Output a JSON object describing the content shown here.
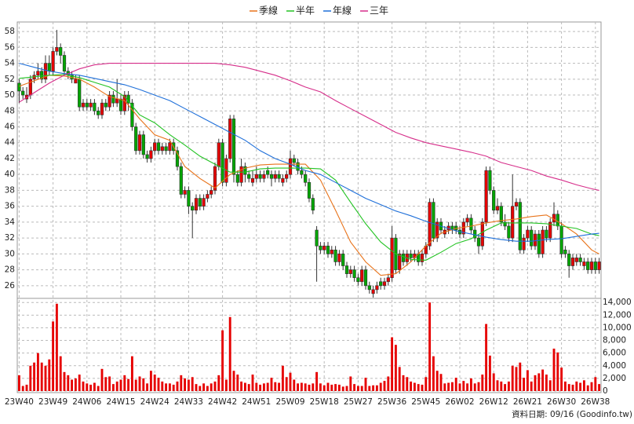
{
  "chart_data": {
    "type": "candlestick",
    "categories": [
      "23W40",
      null,
      null,
      null,
      null,
      null,
      null,
      null,
      null,
      "23W49",
      null,
      null,
      null,
      null,
      null,
      null,
      null,
      null,
      "24W06",
      null,
      null,
      null,
      null,
      null,
      null,
      null,
      null,
      "24W15",
      null,
      null,
      null,
      null,
      null,
      null,
      null,
      null,
      "24W24",
      null,
      null,
      null,
      null,
      null,
      null,
      null,
      null,
      "24W33",
      null,
      null,
      null,
      null,
      null,
      null,
      null,
      null,
      "24W42",
      null,
      null,
      null,
      null,
      null,
      null,
      null,
      null,
      "24W51",
      null,
      null,
      null,
      null,
      null,
      null,
      null,
      null,
      "25W09",
      null,
      null,
      null,
      null,
      null,
      null,
      null,
      null,
      "25W18",
      null,
      null,
      null,
      null,
      null,
      null,
      null,
      null,
      "25W27",
      null,
      null,
      null,
      null,
      null,
      null,
      null,
      null,
      "25W36",
      null,
      null,
      null,
      null,
      null,
      null,
      null,
      null,
      "25W45",
      null,
      null,
      null,
      null,
      null,
      null,
      null,
      null,
      "26W02",
      null,
      null,
      null,
      null,
      null,
      null,
      null,
      null,
      "26W12",
      null,
      null,
      null,
      null,
      null,
      null,
      null,
      null,
      "26W21",
      null,
      null,
      null,
      null,
      null,
      null,
      null,
      null,
      "26W30",
      null,
      null,
      null,
      null,
      null,
      null,
      null,
      null,
      "26W38",
      null
    ],
    "open": [
      51.5,
      50.5,
      49.5,
      50,
      52,
      52.5,
      53,
      52,
      54,
      53,
      55.5,
      56,
      55,
      53,
      52.5,
      51.5,
      52,
      48.5,
      49,
      48.5,
      49,
      48,
      47.5,
      49,
      48.5,
      50,
      49,
      49.5,
      48,
      50,
      49,
      46,
      43,
      45,
      42.5,
      42,
      43,
      44,
      43,
      43.5,
      43,
      44,
      43,
      41,
      37.5,
      38,
      36,
      35.5,
      37,
      36,
      37,
      37.5,
      38,
      41,
      44,
      39,
      42,
      47,
      40,
      39,
      41,
      40,
      39,
      39.5,
      40,
      39.5,
      40.5,
      40,
      39.5,
      40,
      39,
      39.5,
      40,
      42,
      41.5,
      40.5,
      40,
      39,
      37,
      33,
      31,
      30.5,
      31,
      30,
      30.5,
      29,
      30,
      28.5,
      27.5,
      28,
      27,
      26.5,
      28,
      26,
      25,
      25.5,
      26.5,
      26,
      26.5,
      27,
      32,
      28,
      30,
      29,
      30,
      29.5,
      30,
      29,
      30,
      31,
      36.5,
      32,
      34,
      32.5,
      33,
      33.5,
      33.5,
      33,
      32.5,
      34,
      34.5,
      33,
      32,
      31,
      34,
      40.5,
      38,
      35.5,
      36,
      34,
      33.5,
      32,
      36,
      36.5,
      30.5,
      32,
      33,
      31,
      32.5,
      30,
      33,
      32,
      34,
      35,
      33.5,
      30.5,
      30,
      28.5,
      29,
      29.5,
      28.5,
      29,
      28,
      29,
      28
    ],
    "high": [
      52,
      51,
      51,
      52.5,
      53,
      54,
      53.5,
      55,
      55,
      56,
      58.2,
      56.5,
      55.5,
      53.5,
      53,
      52.5,
      52.5,
      49.5,
      49.5,
      49.5,
      49.5,
      48.5,
      49.5,
      49.5,
      50.5,
      50.5,
      52,
      50,
      50.5,
      50.5,
      49.5,
      46.5,
      45.5,
      45.5,
      43,
      43.5,
      44.5,
      44.5,
      44,
      44,
      44.5,
      44.5,
      43.5,
      41.5,
      38.5,
      38.5,
      36.5,
      37.5,
      37.5,
      37.5,
      38,
      38.5,
      41.5,
      44.5,
      44.5,
      42.5,
      47.5,
      47.5,
      40.5,
      42,
      41.5,
      40.5,
      40.5,
      41,
      40.5,
      40.5,
      41,
      40.5,
      40.5,
      40.5,
      40,
      40.5,
      43,
      42.5,
      42,
      41,
      40.5,
      39.5,
      37.5,
      33.5,
      31.5,
      31.5,
      31.5,
      31,
      31,
      30.5,
      30.5,
      29,
      28.5,
      28.5,
      27.5,
      28.5,
      28.5,
      26.5,
      26,
      26.5,
      27,
      27,
      27.5,
      33.5,
      32.5,
      30.5,
      30.5,
      30.5,
      30.5,
      30.5,
      30.5,
      30.5,
      31.5,
      37,
      37,
      34.5,
      34.5,
      33.5,
      34,
      34,
      34,
      33.5,
      34.5,
      35,
      35,
      33.5,
      32.5,
      34.5,
      41,
      41,
      38.5,
      37,
      36.5,
      35,
      34,
      40,
      37,
      37,
      32.5,
      33.5,
      33.5,
      33,
      33,
      33.5,
      33.5,
      34.5,
      36.5,
      35.5,
      34,
      31,
      30.5,
      30,
      30,
      30,
      29.5,
      29.5,
      29.5,
      29.5,
      29.5
    ],
    "low": [
      49,
      49.5,
      49,
      49.5,
      51.5,
      52,
      51.5,
      51.5,
      52.5,
      52.5,
      55,
      54,
      52.5,
      52,
      51.5,
      51.5,
      48,
      48,
      48,
      48,
      47.5,
      47,
      47,
      48,
      48,
      48.5,
      48.5,
      47.5,
      47.5,
      48,
      45.5,
      42.5,
      42.5,
      42,
      41.5,
      41.5,
      42.5,
      42.5,
      42.5,
      42.5,
      42.5,
      42.5,
      40.5,
      37,
      37,
      35,
      32,
      35,
      35.5,
      35.5,
      36.5,
      37,
      37.5,
      40.5,
      38.5,
      38.5,
      41.5,
      39,
      38.5,
      38.5,
      39,
      39,
      38.5,
      39,
      39,
      39,
      39.5,
      38.5,
      39,
      39,
      38.5,
      39,
      39.5,
      41,
      40,
      39.5,
      38.5,
      36.5,
      35,
      26.5,
      30,
      30,
      29.5,
      29.5,
      28.5,
      28.5,
      28,
      27,
      27,
      26.5,
      26,
      26,
      25.5,
      25,
      24.5,
      25,
      25.5,
      25.5,
      26,
      26.5,
      27.5,
      27.5,
      28.5,
      28.5,
      29,
      29,
      28.5,
      28.5,
      29.5,
      30.5,
      31.5,
      31.5,
      32.5,
      32,
      32.5,
      32.5,
      32.5,
      32,
      32,
      33.5,
      32.5,
      31.5,
      30,
      30.5,
      33.5,
      37.5,
      35,
      35,
      33.5,
      33,
      31.5,
      31.5,
      35.5,
      30,
      30,
      31.5,
      30.5,
      30.5,
      29.5,
      29.5,
      31.5,
      31.5,
      33.5,
      33,
      29.5,
      29.5,
      27,
      28,
      28.5,
      28.5,
      28,
      27.5,
      27.5,
      27.5,
      27.5
    ],
    "close": [
      50.5,
      50,
      50,
      52,
      52.5,
      53,
      52,
      54,
      53,
      55.5,
      56,
      55,
      53,
      52.5,
      52,
      52,
      48.5,
      49,
      48.5,
      49,
      48,
      47.5,
      49,
      48.5,
      50,
      49,
      49.5,
      48,
      50,
      49,
      46,
      43,
      45,
      42.5,
      42,
      43,
      44,
      43,
      43.5,
      43,
      44,
      43,
      41,
      37.5,
      38,
      36,
      35.5,
      37,
      36,
      37,
      37.5,
      38,
      41,
      44,
      39,
      42,
      47,
      40,
      39,
      41,
      40,
      39.5,
      39.5,
      40,
      39.5,
      40,
      40,
      39.5,
      40,
      39.5,
      39.5,
      40,
      42,
      41.5,
      40.5,
      40,
      39,
      37,
      35.5,
      31,
      30.5,
      31,
      30,
      30.5,
      29,
      30,
      28.5,
      27.5,
      28,
      27,
      26.5,
      28,
      26,
      25.5,
      25.5,
      26,
      26,
      26.5,
      27,
      32,
      28,
      30,
      29,
      30,
      29.5,
      30,
      29,
      30,
      31,
      36.5,
      32,
      34,
      33,
      33,
      33.5,
      33,
      33,
      32.5,
      34,
      34.5,
      33,
      32,
      31,
      34,
      40.5,
      38,
      35.5,
      36,
      34,
      33.5,
      32,
      36,
      36.5,
      30.5,
      32,
      33,
      31,
      32.5,
      30,
      33,
      32,
      34,
      35,
      33.5,
      30,
      30,
      28.5,
      29.5,
      29.5,
      29,
      29,
      28,
      29,
      28,
      29
    ],
    "up_color": "#e60000",
    "down_color": "#00a600",
    "ylim": [
      24.4,
      59.2
    ],
    "yticks": [
      26,
      28,
      30,
      32,
      34,
      36,
      38,
      40,
      42,
      44,
      46,
      48,
      50,
      52,
      54,
      56,
      58
    ],
    "grid": true,
    "series": [
      {
        "name": "季線",
        "color": "#e8731a",
        "x": [
          0,
          4,
          8,
          12,
          16,
          20,
          24,
          28,
          32,
          36,
          40,
          44,
          48,
          52,
          56,
          60,
          64,
          68,
          72,
          76,
          80,
          84,
          88,
          92,
          96,
          100,
          104,
          108,
          112,
          116,
          120,
          124,
          128,
          132,
          136,
          140,
          144,
          148,
          152,
          154
        ],
        "values": [
          51.1,
          51.8,
          52.5,
          52.4,
          52,
          51,
          49.8,
          49.3,
          47,
          45,
          44.3,
          41,
          39.5,
          38.3,
          40,
          40.8,
          41.2,
          41.3,
          41.3,
          41.3,
          39.3,
          35.5,
          31.5,
          29,
          27.3,
          27.5,
          29,
          31,
          32.6,
          33.2,
          33.5,
          33.9,
          34.2,
          34.4,
          34.7,
          34.9,
          33.8,
          32.5,
          30.5,
          30
        ]
      },
      {
        "name": "半年",
        "color": "#22c322",
        "x": [
          0,
          4,
          8,
          12,
          16,
          20,
          24,
          28,
          32,
          36,
          40,
          44,
          48,
          52,
          56,
          60,
          64,
          68,
          72,
          76,
          80,
          84,
          88,
          92,
          96,
          100,
          104,
          108,
          112,
          116,
          120,
          124,
          128,
          132,
          136,
          140,
          144,
          148,
          152,
          154
        ],
        "values": [
          52.1,
          52.3,
          52.5,
          52.6,
          52.2,
          51.6,
          51,
          49.8,
          47.5,
          46.5,
          45,
          43.7,
          42.3,
          41.3,
          40.3,
          40.3,
          40.7,
          40.8,
          40.8,
          40.8,
          40.7,
          39.3,
          36.5,
          33.8,
          31.5,
          30,
          29.3,
          29.2,
          30.2,
          31.3,
          31.9,
          33,
          33.9,
          33.9,
          33.9,
          33.8,
          33.5,
          33.2,
          32.5,
          32.3
        ]
      },
      {
        "name": "年線",
        "color": "#1e6fd9",
        "x": [
          0,
          4,
          8,
          12,
          16,
          20,
          24,
          28,
          32,
          36,
          40,
          44,
          48,
          52,
          56,
          60,
          64,
          68,
          72,
          76,
          80,
          84,
          88,
          92,
          96,
          100,
          104,
          108,
          112,
          116,
          120,
          124,
          128,
          132,
          136,
          140,
          144,
          148,
          152,
          154
        ],
        "values": [
          54,
          53.5,
          53,
          52.7,
          52.5,
          52.1,
          51.7,
          51.3,
          50.7,
          50,
          49.3,
          48.3,
          47.3,
          46.3,
          45.3,
          44.3,
          43,
          42,
          41.3,
          40.5,
          40,
          39,
          38,
          37,
          36.2,
          35.4,
          34.8,
          34.1,
          33.5,
          32.9,
          32.5,
          32.1,
          31.8,
          31.6,
          31.6,
          31.8,
          31.9,
          32.2,
          32.5,
          32.6
        ]
      },
      {
        "name": "三年",
        "color": "#d62e8a",
        "x": [
          0,
          4,
          8,
          12,
          16,
          20,
          24,
          28,
          32,
          36,
          40,
          44,
          48,
          52,
          56,
          60,
          64,
          68,
          72,
          76,
          80,
          84,
          88,
          92,
          96,
          100,
          104,
          108,
          112,
          116,
          120,
          124,
          128,
          132,
          136,
          140,
          144,
          148,
          152,
          154
        ],
        "values": [
          49.1,
          50.3,
          51.5,
          52.5,
          53.3,
          53.8,
          54,
          54,
          54,
          54,
          54,
          54,
          54,
          54,
          53.8,
          53.5,
          53,
          52.5,
          51.8,
          51,
          50.4,
          49.3,
          48.3,
          47.3,
          46.3,
          45.3,
          44.6,
          44,
          43.6,
          43.2,
          42.8,
          42.3,
          41.5,
          41,
          40.5,
          39.8,
          39.3,
          38.7,
          38.2,
          38
        ]
      }
    ],
    "volume": {
      "color": "#e60000",
      "ylim": [
        0,
        14400
      ],
      "yticks": [
        0,
        {
          "value": 2000,
          "label": "2,000"
        },
        {
          "value": 4000,
          "label": "4,000"
        },
        {
          "value": 6000,
          "label": "6,000"
        },
        {
          "value": 8000,
          "label": "8,000"
        },
        {
          "value": 10000,
          "label": "10,000"
        },
        {
          "value": 12000,
          "label": "12,000"
        },
        {
          "value": 14000,
          "label": "14,000"
        }
      ],
      "values": [
        2500,
        800,
        1000,
        4000,
        4500,
        6000,
        4500,
        4000,
        5000,
        11000,
        13800,
        5500,
        3000,
        2500,
        1800,
        2000,
        2600,
        1500,
        1200,
        1000,
        1300,
        800,
        3500,
        2200,
        2300,
        1100,
        1500,
        1800,
        2500,
        1900,
        5500,
        1800,
        2300,
        2000,
        1200,
        3200,
        2600,
        2100,
        1500,
        1200,
        1200,
        1000,
        1500,
        2500,
        2000,
        1800,
        2200,
        1100,
        800,
        1200,
        800,
        1200,
        1500,
        2500,
        9600,
        1800,
        11700,
        3200,
        2600,
        1500,
        1300,
        1100,
        2600,
        1300,
        1000,
        1200,
        1300,
        2100,
        1400,
        1300,
        4000,
        2200,
        2900,
        1800,
        1200,
        1300,
        1200,
        1000,
        1200,
        3000,
        1200,
        900,
        1300,
        1000,
        1100,
        1000,
        700,
        800,
        2300,
        1100,
        800,
        800,
        2100,
        800,
        900,
        900,
        1300,
        1600,
        2300,
        8500,
        7300,
        3800,
        2500,
        2200,
        1500,
        1300,
        1100,
        1000,
        2200,
        14000,
        5500,
        3200,
        2700,
        1200,
        1300,
        1400,
        2100,
        1200,
        1600,
        1200,
        2000,
        1200,
        1400,
        2600,
        10600,
        5600,
        2800,
        1700,
        1500,
        1100,
        1500,
        4000,
        3800,
        4500,
        2100,
        3300,
        1500,
        2500,
        2800,
        3400,
        2600,
        1700,
        6700,
        6100,
        3700,
        1500,
        1100,
        1000,
        1500,
        1300,
        1700,
        900,
        1400,
        2200,
        1100
      ]
    },
    "footnote": "資料日期: 09/16 (Goodinfo.tw)"
  }
}
